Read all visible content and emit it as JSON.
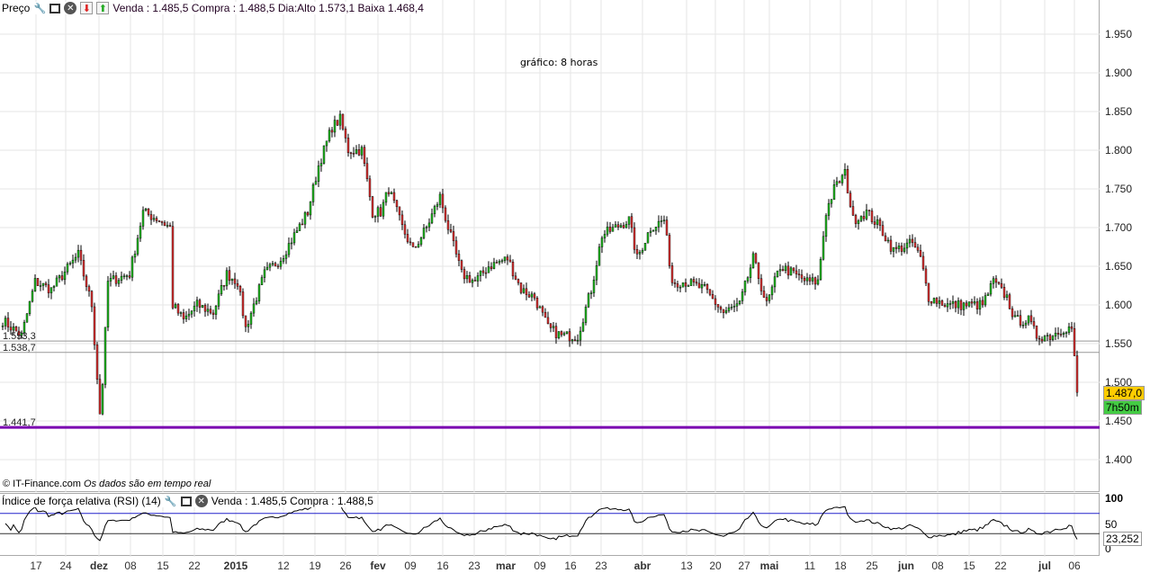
{
  "header": {
    "title": "Preço",
    "quote": "Venda : 1.485,5 Compra : 1.488,5 Dia:Alto 1.573,1 Baixa 1.468,4"
  },
  "chart_note": "gráfico: 8 horas",
  "footer": {
    "brand": "© IT-Finance.com",
    "realtime": "Os dados são em tempo real"
  },
  "rsi_header": {
    "title": "Índice de força relativa (RSI) (14)",
    "quote": "Venda : 1.485,5 Compra : 1.488,5"
  },
  "price_axis": [
    "1.950",
    "1.900",
    "1.850",
    "1.800",
    "1.750",
    "1.700",
    "1.650",
    "1.600",
    "1.550",
    "1.500",
    "1.450",
    "1.400"
  ],
  "rsi_axis": [
    "100",
    "50",
    "0"
  ],
  "tags": {
    "last_price": "1.487,0",
    "countdown": "7h50m",
    "rsi_value": "23,252"
  },
  "levels": {
    "upper": "1.553,3",
    "middle": "1.538,7",
    "support": "1.441,7"
  },
  "x_axis": [
    {
      "t": "17",
      "b": false
    },
    {
      "t": "24",
      "b": false
    },
    {
      "t": "dez",
      "b": true
    },
    {
      "t": "08",
      "b": false
    },
    {
      "t": "15",
      "b": false
    },
    {
      "t": "22",
      "b": false
    },
    {
      "t": "2015",
      "b": true
    },
    {
      "t": "12",
      "b": false
    },
    {
      "t": "19",
      "b": false
    },
    {
      "t": "26",
      "b": false
    },
    {
      "t": "fev",
      "b": true
    },
    {
      "t": "09",
      "b": false
    },
    {
      "t": "16",
      "b": false
    },
    {
      "t": "23",
      "b": false
    },
    {
      "t": "mar",
      "b": true
    },
    {
      "t": "09",
      "b": false
    },
    {
      "t": "16",
      "b": false
    },
    {
      "t": "23",
      "b": false
    },
    {
      "t": "abr",
      "b": true
    },
    {
      "t": "13",
      "b": false
    },
    {
      "t": "20",
      "b": false
    },
    {
      "t": "27",
      "b": false
    },
    {
      "t": "mai",
      "b": true
    },
    {
      "t": "11",
      "b": false
    },
    {
      "t": "18",
      "b": false
    },
    {
      "t": "25",
      "b": false
    },
    {
      "t": "jun",
      "b": true
    },
    {
      "t": "08",
      "b": false
    },
    {
      "t": "15",
      "b": false
    },
    {
      "t": "22",
      "b": false
    },
    {
      "t": "jul",
      "b": true
    },
    {
      "t": "06",
      "b": false
    }
  ],
  "colors": {
    "up": "#22bb22",
    "down": "#dd3333",
    "support": "#7a00b0",
    "rsi_band": "#2222cc",
    "tag": "#ffcc00",
    "timer": "#44cc44"
  },
  "chart_data": {
    "type": "candlestick",
    "ylim": [
      1.38,
      1.97
    ],
    "close_path": [
      [
        0,
        1.58
      ],
      [
        7,
        1.56
      ],
      [
        12,
        1.63
      ],
      [
        18,
        1.62
      ],
      [
        28,
        1.665
      ],
      [
        33,
        1.6
      ],
      [
        36,
        1.46
      ],
      [
        37,
        1.5
      ],
      [
        39,
        1.63
      ],
      [
        47,
        1.64
      ],
      [
        52,
        1.72
      ],
      [
        58,
        1.71
      ],
      [
        62,
        1.7
      ],
      [
        63,
        1.6
      ],
      [
        67,
        1.58
      ],
      [
        72,
        1.6
      ],
      [
        78,
        1.59
      ],
      [
        83,
        1.64
      ],
      [
        87,
        1.63
      ],
      [
        90,
        1.57
      ],
      [
        93,
        1.6
      ],
      [
        97,
        1.64
      ],
      [
        103,
        1.66
      ],
      [
        108,
        1.69
      ],
      [
        113,
        1.72
      ],
      [
        117,
        1.78
      ],
      [
        122,
        1.83
      ],
      [
        125,
        1.84
      ],
      [
        128,
        1.8
      ],
      [
        133,
        1.8
      ],
      [
        137,
        1.72
      ],
      [
        140,
        1.72
      ],
      [
        143,
        1.75
      ],
      [
        148,
        1.7
      ],
      [
        152,
        1.67
      ],
      [
        157,
        1.7
      ],
      [
        162,
        1.74
      ],
      [
        165,
        1.7
      ],
      [
        170,
        1.64
      ],
      [
        175,
        1.63
      ],
      [
        180,
        1.65
      ],
      [
        187,
        1.66
      ],
      [
        192,
        1.62
      ],
      [
        197,
        1.61
      ],
      [
        202,
        1.57
      ],
      [
        207,
        1.56
      ],
      [
        213,
        1.56
      ],
      [
        218,
        1.62
      ],
      [
        222,
        1.69
      ],
      [
        227,
        1.7
      ],
      [
        232,
        1.71
      ],
      [
        235,
        1.66
      ],
      [
        240,
        1.7
      ],
      [
        245,
        1.71
      ],
      [
        248,
        1.63
      ],
      [
        253,
        1.63
      ],
      [
        260,
        1.62
      ],
      [
        267,
        1.59
      ],
      [
        273,
        1.6
      ],
      [
        278,
        1.66
      ],
      [
        283,
        1.6
      ],
      [
        288,
        1.65
      ],
      [
        293,
        1.64
      ],
      [
        298,
        1.63
      ],
      [
        302,
        1.63
      ],
      [
        305,
        1.72
      ],
      [
        308,
        1.75
      ],
      [
        312,
        1.77
      ],
      [
        315,
        1.71
      ],
      [
        320,
        1.72
      ],
      [
        325,
        1.7
      ],
      [
        330,
        1.67
      ],
      [
        337,
        1.68
      ],
      [
        340,
        1.66
      ],
      [
        343,
        1.61
      ],
      [
        350,
        1.6
      ],
      [
        357,
        1.6
      ],
      [
        363,
        1.6
      ],
      [
        367,
        1.63
      ],
      [
        372,
        1.61
      ],
      [
        375,
        1.58
      ],
      [
        380,
        1.58
      ],
      [
        383,
        1.56
      ],
      [
        388,
        1.56
      ],
      [
        393,
        1.57
      ],
      [
        396,
        1.57
      ],
      [
        398,
        1.49
      ]
    ]
  }
}
